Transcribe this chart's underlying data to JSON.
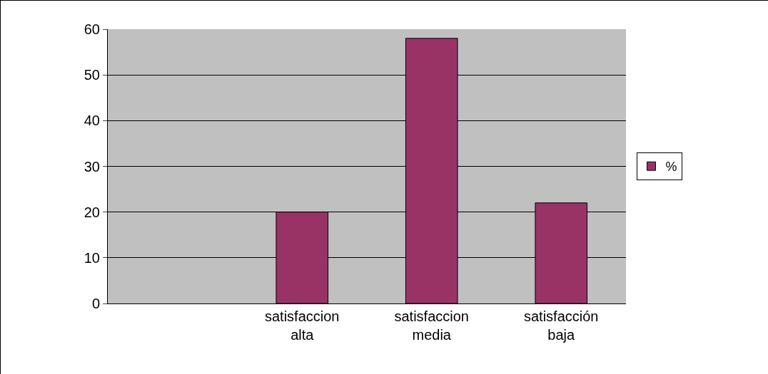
{
  "chart_data": {
    "type": "bar",
    "categories": [
      null,
      "satisfaccion alta",
      "satisfaccion media",
      "satisfacción baja"
    ],
    "series": [
      {
        "name": "%",
        "color": "#993366",
        "values": [
          null,
          20,
          58,
          22
        ]
      }
    ],
    "ylim": [
      0,
      60
    ],
    "yticks": [
      0,
      10,
      20,
      30,
      40,
      50,
      60
    ],
    "grid": "y",
    "legend": "right"
  }
}
